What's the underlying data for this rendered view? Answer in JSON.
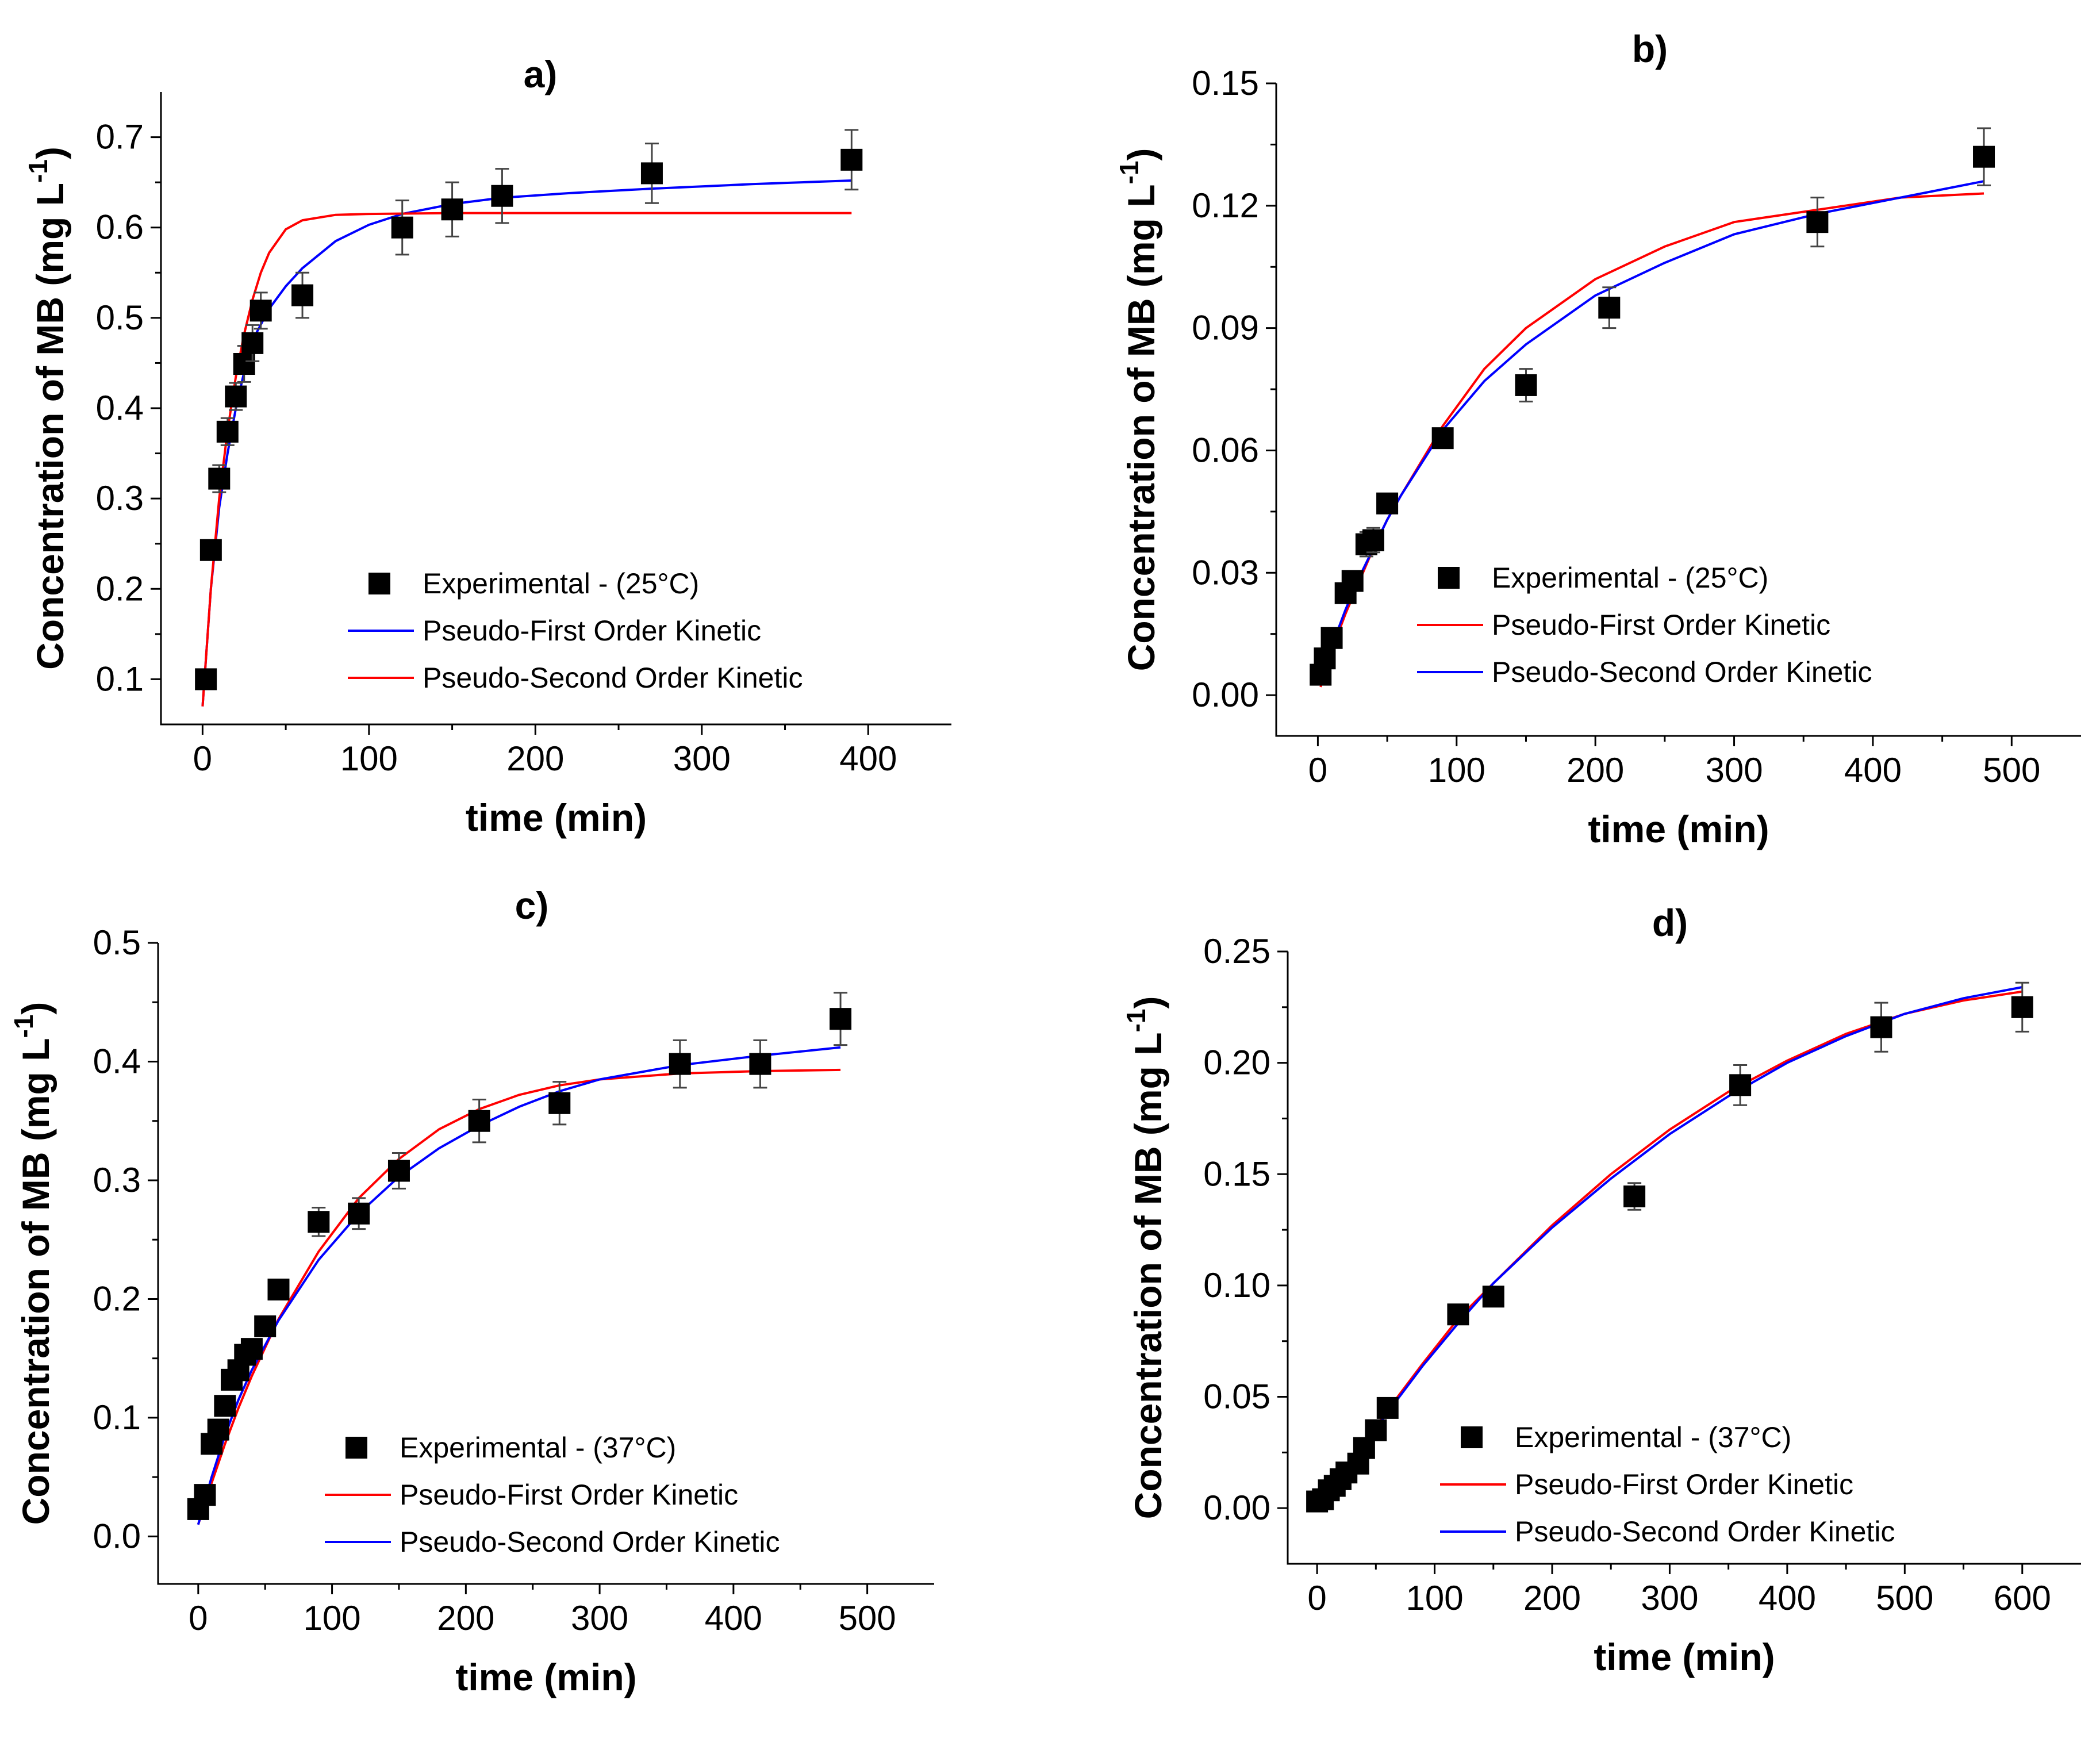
{
  "chart_data": [
    {
      "type": "scatter",
      "panel_label": "a)",
      "xlabel": "time (min)",
      "ylabel": "Concentration of MB (mg L",
      "ylabel_sup": "-1",
      "ylabel_close": ")",
      "xlim": [
        -25,
        450
      ],
      "ylim": [
        0.05,
        0.75
      ],
      "xticks": [
        0,
        100,
        200,
        300,
        400
      ],
      "xtick_labels": [
        "0",
        "100",
        "200",
        "300",
        "400"
      ],
      "yticks": [
        0.1,
        0.2,
        0.3,
        0.4,
        0.5,
        0.6,
        0.7
      ],
      "ytick_labels": [
        "0.1",
        "0.2",
        "0.3",
        "0.4",
        "0.5",
        "0.6",
        "0.7"
      ],
      "experimental": {
        "name": "Experimental - (25°C)",
        "x": [
          2,
          5,
          10,
          15,
          20,
          25,
          30,
          35,
          60,
          120,
          150,
          180,
          270,
          390
        ],
        "y": [
          0.1,
          0.243,
          0.322,
          0.374,
          0.413,
          0.449,
          0.472,
          0.508,
          0.525,
          0.6,
          0.62,
          0.635,
          0.66,
          0.675
        ],
        "err": [
          0,
          0.01,
          0.015,
          0.015,
          0.015,
          0.02,
          0.02,
          0.02,
          0.025,
          0.03,
          0.03,
          0.03,
          0.033,
          0.033
        ]
      },
      "series": [
        {
          "name": "Pseudo-First Order Kinetic",
          "color": "#0000ff",
          "x": [
            0,
            5,
            10,
            15,
            20,
            25,
            30,
            40,
            50,
            60,
            80,
            100,
            120,
            150,
            180,
            220,
            270,
            330,
            390
          ],
          "y": [
            0.07,
            0.2,
            0.29,
            0.35,
            0.4,
            0.44,
            0.475,
            0.51,
            0.535,
            0.555,
            0.585,
            0.603,
            0.615,
            0.626,
            0.633,
            0.638,
            0.643,
            0.648,
            0.652
          ]
        },
        {
          "name": "Pseudo-Second Order Kinetic",
          "color": "#ff0000",
          "x": [
            0,
            5,
            10,
            15,
            20,
            25,
            30,
            35,
            40,
            50,
            60,
            80,
            100,
            150,
            200,
            300,
            390
          ],
          "y": [
            0.07,
            0.2,
            0.3,
            0.375,
            0.435,
            0.482,
            0.52,
            0.55,
            0.572,
            0.598,
            0.608,
            0.614,
            0.615,
            0.616,
            0.616,
            0.616,
            0.616
          ]
        }
      ]
    },
    {
      "type": "scatter",
      "panel_label": "b)",
      "xlabel": "time (min)",
      "ylabel": "Concentration of MB (mg L",
      "ylabel_sup": "-1",
      "ylabel_close": ")",
      "xlim": [
        -30,
        550
      ],
      "ylim": [
        -0.01,
        0.15
      ],
      "xticks": [
        0,
        100,
        200,
        300,
        400,
        500
      ],
      "xtick_labels": [
        "0",
        "100",
        "200",
        "300",
        "400",
        "500"
      ],
      "yticks": [
        0.0,
        0.03,
        0.06,
        0.09,
        0.12,
        0.15
      ],
      "ytick_labels": [
        "0.00",
        "0.03",
        "0.06",
        "0.09",
        "0.12",
        "0.15"
      ],
      "experimental": {
        "name": "Experimental - (25°C)",
        "x": [
          2,
          5,
          10,
          20,
          25,
          35,
          40,
          50,
          90,
          150,
          210,
          360,
          480
        ],
        "y": [
          0.005,
          0.009,
          0.014,
          0.025,
          0.028,
          0.037,
          0.038,
          0.047,
          0.063,
          0.076,
          0.095,
          0.116,
          0.132
        ],
        "err": [
          0,
          0,
          0.002,
          0.002,
          0.002,
          0.003,
          0.003,
          0.002,
          0.002,
          0.004,
          0.005,
          0.006,
          0.007
        ]
      },
      "series": [
        {
          "name": "Pseudo-First Order Kinetic",
          "color": "#ff0000",
          "x": [
            2,
            10,
            20,
            30,
            40,
            50,
            60,
            90,
            120,
            150,
            200,
            250,
            300,
            360,
            420,
            480
          ],
          "y": [
            0.002,
            0.011,
            0.02,
            0.028,
            0.036,
            0.043,
            0.049,
            0.066,
            0.08,
            0.09,
            0.102,
            0.11,
            0.116,
            0.119,
            0.122,
            0.123
          ]
        },
        {
          "name": "Pseudo-Second Order Kinetic",
          "color": "#0000ff",
          "x": [
            2,
            10,
            20,
            30,
            40,
            50,
            60,
            90,
            120,
            150,
            200,
            250,
            300,
            360,
            420,
            480
          ],
          "y": [
            0.003,
            0.012,
            0.021,
            0.029,
            0.036,
            0.043,
            0.049,
            0.065,
            0.077,
            0.086,
            0.098,
            0.106,
            0.113,
            0.118,
            0.122,
            0.126
          ]
        }
      ]
    },
    {
      "type": "scatter",
      "panel_label": "c)",
      "xlabel": "time (min)",
      "ylabel": "Concentration of MB (mg L",
      "ylabel_sup": "-1",
      "ylabel_close": ")",
      "xlim": [
        -30,
        550
      ],
      "ylim": [
        -0.04,
        0.5
      ],
      "xticks": [
        0,
        100,
        200,
        300,
        400,
        500
      ],
      "xtick_labels": [
        "0",
        "100",
        "200",
        "300",
        "400",
        "500"
      ],
      "yticks": [
        0.0,
        0.1,
        0.2,
        0.3,
        0.4,
        0.5
      ],
      "ytick_labels": [
        "0.0",
        "0.1",
        "0.2",
        "0.3",
        "0.4",
        "0.5"
      ],
      "experimental": {
        "name": "Experimental - (37°C)",
        "x": [
          0,
          5,
          10,
          15,
          20,
          25,
          30,
          35,
          40,
          50,
          60,
          90,
          120,
          150,
          210,
          270,
          360,
          420,
          480
        ],
        "y": [
          0.023,
          0.035,
          0.078,
          0.09,
          0.11,
          0.132,
          0.14,
          0.153,
          0.158,
          0.177,
          0.208,
          0.265,
          0.272,
          0.308,
          0.35,
          0.365,
          0.398,
          0.398,
          0.436
        ],
        "err": [
          0,
          0,
          0.005,
          0.005,
          0.006,
          0.006,
          0.006,
          0.006,
          0.006,
          0.007,
          0.007,
          0.012,
          0.013,
          0.015,
          0.018,
          0.018,
          0.02,
          0.02,
          0.022
        ]
      },
      "series": [
        {
          "name": "Pseudo-First Order Kinetic",
          "color": "#ff0000",
          "x": [
            0,
            10,
            20,
            30,
            40,
            60,
            90,
            120,
            150,
            180,
            210,
            240,
            270,
            300,
            360,
            420,
            480
          ],
          "y": [
            0.01,
            0.045,
            0.078,
            0.108,
            0.135,
            0.183,
            0.24,
            0.285,
            0.318,
            0.343,
            0.36,
            0.372,
            0.38,
            0.385,
            0.39,
            0.392,
            0.393
          ]
        },
        {
          "name": "Pseudo-Second Order Kinetic",
          "color": "#0000ff",
          "x": [
            0,
            10,
            20,
            30,
            40,
            60,
            90,
            120,
            150,
            180,
            210,
            240,
            270,
            300,
            360,
            420,
            480
          ],
          "y": [
            0.01,
            0.05,
            0.085,
            0.115,
            0.14,
            0.182,
            0.233,
            0.272,
            0.303,
            0.327,
            0.346,
            0.362,
            0.375,
            0.385,
            0.397,
            0.405,
            0.412
          ]
        }
      ]
    },
    {
      "type": "scatter",
      "panel_label": "d)",
      "xlabel": "time (min)",
      "ylabel": "Concentration of MB (mg L",
      "ylabel_sup": "-1",
      "ylabel_close": ")",
      "xlim": [
        -25,
        650
      ],
      "ylim": [
        -0.025,
        0.25
      ],
      "xticks": [
        0,
        100,
        200,
        300,
        400,
        500,
        600
      ],
      "xtick_labels": [
        "0",
        "100",
        "200",
        "300",
        "400",
        "500",
        "600"
      ],
      "yticks": [
        0.0,
        0.05,
        0.1,
        0.15,
        0.2,
        0.25
      ],
      "ytick_labels": [
        "0.00",
        "0.05",
        "0.10",
        "0.15",
        "0.20",
        "0.25"
      ],
      "experimental": {
        "name": "Experimental - (37°C)",
        "x": [
          0,
          5,
          10,
          15,
          20,
          25,
          35,
          40,
          50,
          60,
          120,
          150,
          270,
          360,
          480,
          600
        ],
        "y": [
          0.003,
          0.004,
          0.008,
          0.01,
          0.013,
          0.016,
          0.02,
          0.027,
          0.035,
          0.045,
          0.087,
          0.095,
          0.14,
          0.19,
          0.216,
          0.225
        ],
        "err": [
          0,
          0,
          0,
          0,
          0,
          0,
          0,
          0.002,
          0.002,
          0.002,
          0.002,
          0.003,
          0.006,
          0.009,
          0.011,
          0.011
        ]
      },
      "series": [
        {
          "name": "Pseudo-First Order Kinetic",
          "color": "#ff0000",
          "x": [
            0,
            30,
            60,
            90,
            120,
            150,
            200,
            250,
            300,
            350,
            400,
            450,
            500,
            550,
            600
          ],
          "y": [
            0.0,
            0.022,
            0.044,
            0.065,
            0.085,
            0.101,
            0.127,
            0.15,
            0.17,
            0.187,
            0.201,
            0.213,
            0.222,
            0.228,
            0.232
          ]
        },
        {
          "name": "Pseudo-Second Order Kinetic",
          "color": "#0000ff",
          "x": [
            0,
            30,
            60,
            90,
            120,
            150,
            200,
            250,
            300,
            350,
            400,
            450,
            500,
            550,
            600
          ],
          "y": [
            0.0,
            0.022,
            0.043,
            0.064,
            0.083,
            0.101,
            0.126,
            0.148,
            0.168,
            0.185,
            0.2,
            0.212,
            0.222,
            0.229,
            0.234
          ]
        }
      ]
    }
  ]
}
